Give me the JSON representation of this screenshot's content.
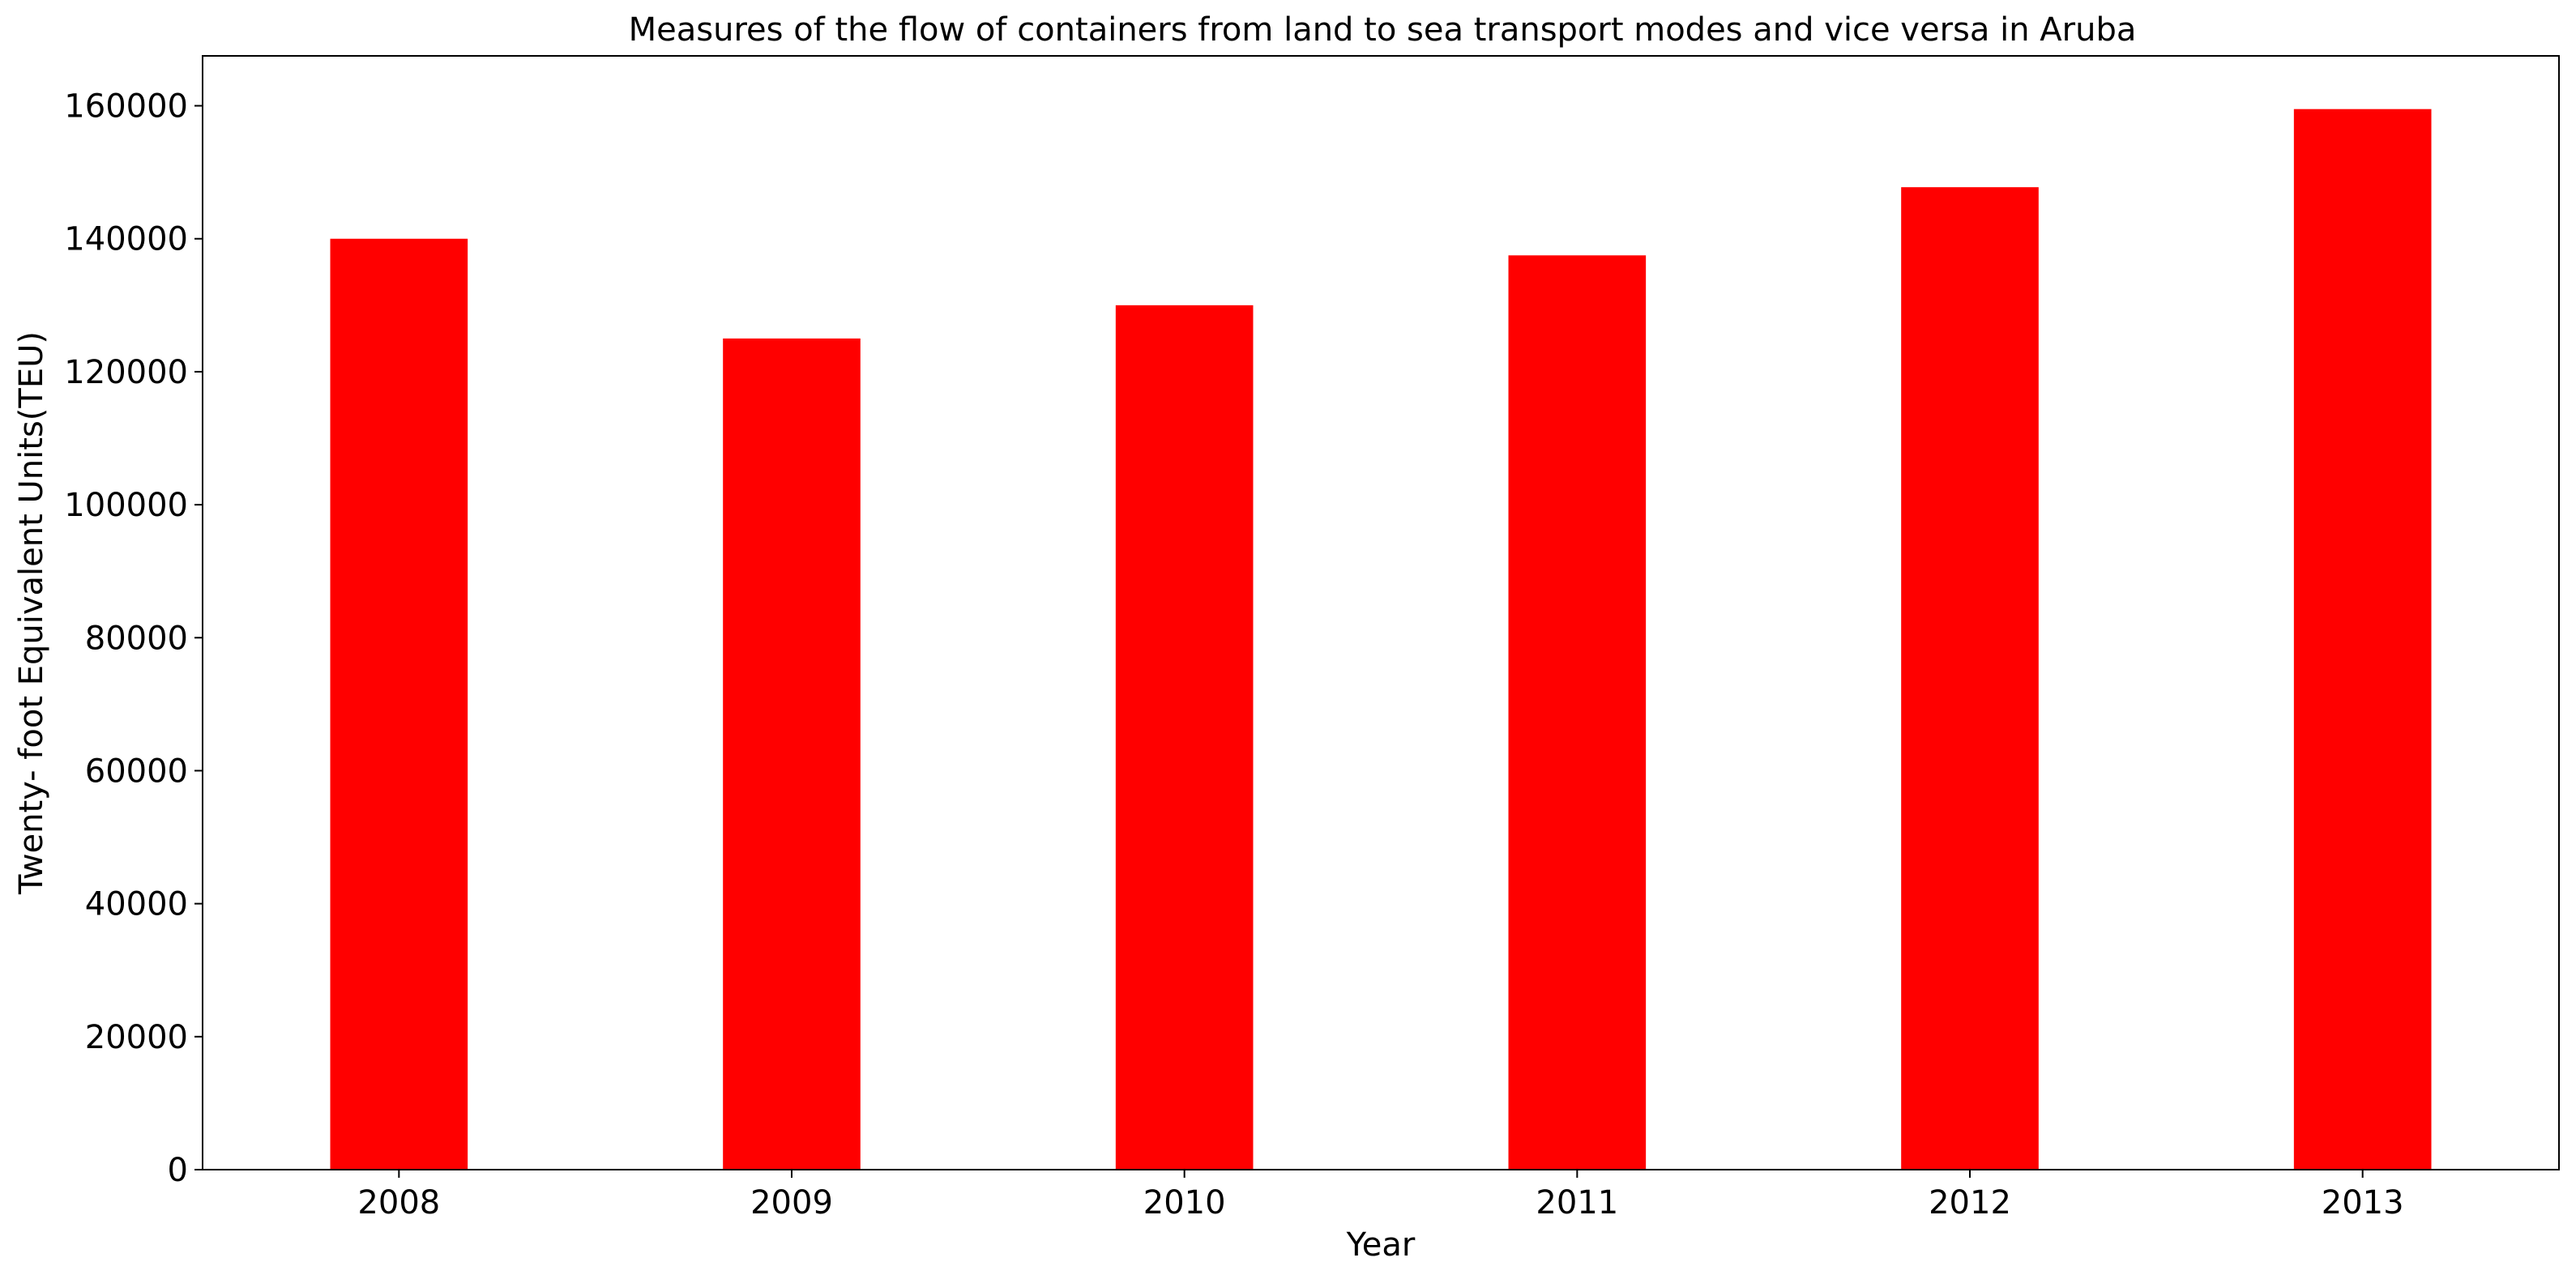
{
  "chart_data": {
    "type": "bar",
    "title": "Measures of the flow of containers from land to sea transport modes and vice versa in Aruba",
    "xlabel": "Year",
    "ylabel": "Twenty- foot Equivalent Units(TEU)",
    "categories": [
      "2008",
      "2009",
      "2010",
      "2011",
      "2012",
      "2013"
    ],
    "series": [
      {
        "values": [
          140000,
          125000,
          130000,
          137500,
          147750,
          159500
        ]
      }
    ],
    "ylim": [
      0,
      167500
    ],
    "yticks": [
      0,
      20000,
      40000,
      60000,
      80000,
      100000,
      120000,
      140000,
      160000
    ],
    "ytick_labels": [
      "0",
      "20000",
      "40000",
      "60000",
      "80000",
      "100000",
      "120000",
      "140000",
      "160000"
    ],
    "grid": false,
    "legend": "none",
    "bar_color": "#ff0000"
  }
}
